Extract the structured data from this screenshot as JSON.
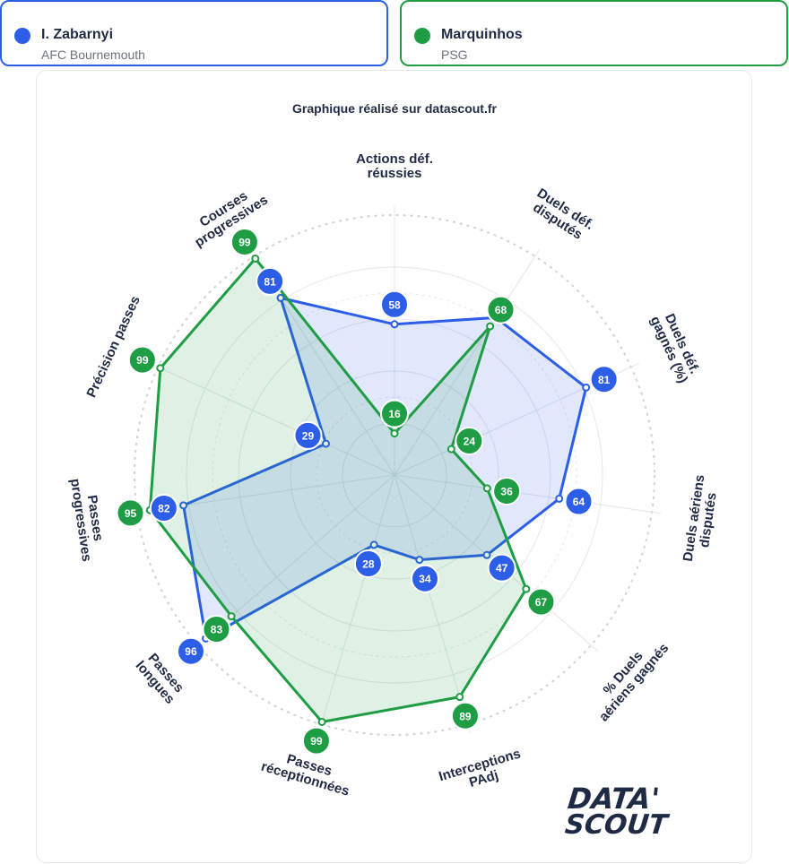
{
  "players": [
    {
      "name": "I. Zabarnyi",
      "club": "AFC Bournemouth",
      "color": "#2d5ee8"
    },
    {
      "name": "Marquinhos",
      "club": "PSG",
      "color": "#1f9d45"
    }
  ],
  "brand": {
    "line1": "DATA'",
    "line2": "SCOUT"
  },
  "chart_data": {
    "type": "radar",
    "title": "Graphique réalisé sur datascout.fr",
    "range": [
      0,
      100
    ],
    "axes": [
      [
        "Actions déf.",
        "réussies"
      ],
      [
        "Duels déf.",
        "disputés"
      ],
      [
        "Duels déf.",
        "gagnés (%)"
      ],
      [
        "Duels aériens",
        "disputés"
      ],
      [
        "% Duels",
        "aériens gagnés"
      ],
      [
        "Interceptions",
        "PAdj"
      ],
      [
        "Passes",
        "réceptionnées"
      ],
      [
        "Passes",
        "longues"
      ],
      [
        "Passes",
        "progressives"
      ],
      [
        "Précision passes"
      ],
      [
        "Courses",
        "progressives"
      ]
    ],
    "series": [
      {
        "name": "I. Zabarnyi",
        "values": [
          58,
          72,
          81,
          64,
          47,
          34,
          28,
          96,
          82,
          29,
          81
        ]
      },
      {
        "name": "Marquinhos",
        "values": [
          16,
          68,
          24,
          36,
          67,
          89,
          99,
          83,
          95,
          99,
          99
        ]
      }
    ],
    "shown_labels": [
      [
        58,
        null,
        81,
        64,
        47,
        34,
        28,
        96,
        82,
        29,
        81
      ],
      [
        16,
        68,
        24,
        36,
        67,
        89,
        99,
        83,
        95,
        99,
        99
      ]
    ],
    "colors": {
      "series1": "#2d5ee8",
      "series2": "#1f9d45"
    }
  }
}
